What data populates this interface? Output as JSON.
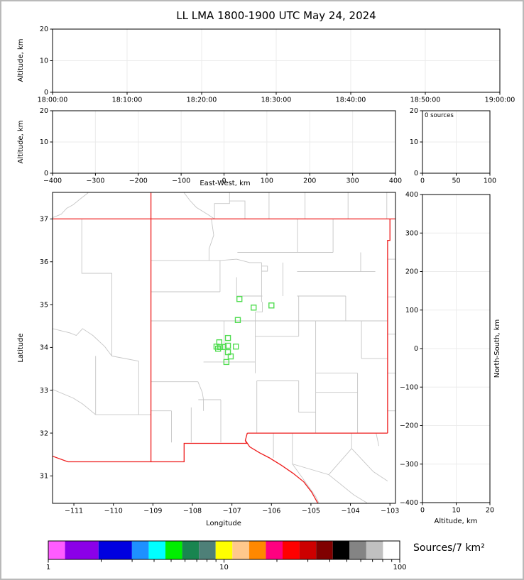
{
  "title": "LL LMA 1800-1900 UTC May 24, 2024",
  "colors": {
    "panel_border": "#000000",
    "grid": "#ebebeb",
    "tick_text": "#000000",
    "state_border": "#ee1c1c",
    "county_line": "#c6c6c6",
    "station_marker": "#52dd52"
  },
  "chart_data": [
    {
      "id": "time_height",
      "type": "scatter",
      "ylabel": "Altitude, km",
      "xlim": [
        0,
        3600
      ],
      "ylim": [
        0,
        20
      ],
      "xticks": [
        {
          "v": 0,
          "l": "18:00:00"
        },
        {
          "v": 600,
          "l": "18:10:00"
        },
        {
          "v": 1200,
          "l": "18:20:00"
        },
        {
          "v": 1800,
          "l": "18:30:00"
        },
        {
          "v": 2400,
          "l": "18:40:00"
        },
        {
          "v": 3000,
          "l": "18:50:00"
        },
        {
          "v": 3600,
          "l": "19:00:00"
        }
      ],
      "yticks": [
        {
          "v": 0,
          "l": "0"
        },
        {
          "v": 10,
          "l": "10"
        },
        {
          "v": 20,
          "l": "20"
        }
      ],
      "grid": true,
      "points": []
    },
    {
      "id": "ew_height",
      "type": "scatter",
      "xlabel": "East-West, km",
      "ylabel": "Altitude, km",
      "xlim": [
        -400,
        400
      ],
      "ylim": [
        0,
        20
      ],
      "xticks": [
        {
          "v": -400,
          "l": "−400"
        },
        {
          "v": -300,
          "l": "−300"
        },
        {
          "v": -200,
          "l": "−200"
        },
        {
          "v": -100,
          "l": "−100"
        },
        {
          "v": 0,
          "l": "0"
        },
        {
          "v": 100,
          "l": "100"
        },
        {
          "v": 200,
          "l": "200"
        },
        {
          "v": 300,
          "l": "300"
        },
        {
          "v": 400,
          "l": "400"
        }
      ],
      "yticks": [
        {
          "v": 0,
          "l": "0"
        },
        {
          "v": 10,
          "l": "10"
        },
        {
          "v": 20,
          "l": "20"
        }
      ],
      "grid": true,
      "points": []
    },
    {
      "id": "alt_hist",
      "type": "scatter",
      "annotation": "0 sources",
      "xlim": [
        0,
        100
      ],
      "ylim": [
        0,
        20
      ],
      "xticks": [
        {
          "v": 0,
          "l": "0"
        },
        {
          "v": 50,
          "l": "50"
        },
        {
          "v": 100,
          "l": "100"
        }
      ],
      "yticks": [
        {
          "v": 0,
          "l": "0"
        },
        {
          "v": 10,
          "l": "10"
        },
        {
          "v": 20,
          "l": "20"
        }
      ],
      "grid": true,
      "points": []
    },
    {
      "id": "plan_view",
      "type": "scatter",
      "xlabel": "Longitude",
      "ylabel": "Latitude",
      "xlim": [
        -111.54,
        -102.86
      ],
      "ylim": [
        30.36,
        37.62
      ],
      "xticks": [
        {
          "v": -111,
          "l": "−111"
        },
        {
          "v": -110,
          "l": "−110"
        },
        {
          "v": -109,
          "l": "−109"
        },
        {
          "v": -108,
          "l": "−108"
        },
        {
          "v": -107,
          "l": "−107"
        },
        {
          "v": -106,
          "l": "−106"
        },
        {
          "v": -105,
          "l": "−105"
        },
        {
          "v": -104,
          "l": "−104"
        },
        {
          "v": -103,
          "l": "−103"
        }
      ],
      "yticks": [
        {
          "v": 31,
          "l": "31"
        },
        {
          "v": 32,
          "l": "32"
        },
        {
          "v": 33,
          "l": "33"
        },
        {
          "v": 34,
          "l": "34"
        },
        {
          "v": 35,
          "l": "35"
        },
        {
          "v": 36,
          "l": "36"
        },
        {
          "v": 37,
          "l": "37"
        }
      ],
      "grid": false,
      "points": []
    },
    {
      "id": "ns_height",
      "type": "scatter",
      "xlabel": "Altitude, km",
      "ylabel": "North-South, km",
      "xlim": [
        0,
        20
      ],
      "ylim": [
        -400,
        400
      ],
      "xticks": [
        {
          "v": 0,
          "l": "0"
        },
        {
          "v": 10,
          "l": "10"
        },
        {
          "v": 20,
          "l": "20"
        }
      ],
      "yticks": [
        {
          "v": 400,
          "l": "400"
        },
        {
          "v": 300,
          "l": "300"
        },
        {
          "v": 200,
          "l": "200"
        },
        {
          "v": 100,
          "l": "100"
        },
        {
          "v": 0,
          "l": "0"
        },
        {
          "v": -100,
          "l": "−100"
        },
        {
          "v": -200,
          "l": "−200"
        },
        {
          "v": -300,
          "l": "−300"
        },
        {
          "v": -400,
          "l": "−400"
        }
      ],
      "grid": true,
      "points": []
    }
  ],
  "map": {
    "stations": [
      [
        -106.81,
        35.13
      ],
      [
        -106.45,
        34.93
      ],
      [
        -106.0,
        34.98
      ],
      [
        -106.85,
        34.64
      ],
      [
        -107.1,
        34.22
      ],
      [
        -107.32,
        34.12
      ],
      [
        -107.39,
        34.02
      ],
      [
        -107.3,
        34.01
      ],
      [
        -107.21,
        34.01
      ],
      [
        -107.1,
        34.04
      ],
      [
        -106.9,
        34.02
      ],
      [
        -107.35,
        33.97
      ],
      [
        -107.1,
        33.89
      ],
      [
        -107.03,
        33.79
      ],
      [
        -107.14,
        33.66
      ]
    ],
    "state_border": [
      [
        [
          -111.54,
          37.0
        ],
        [
          -102.86,
          37.0
        ]
      ],
      [
        [
          -109.05,
          37.61
        ],
        [
          -109.05,
          31.33
        ]
      ],
      [
        [
          -103.0,
          37.0
        ],
        [
          -103.0,
          36.5
        ],
        [
          -103.06,
          36.5
        ],
        [
          -103.06,
          32.0
        ]
      ],
      [
        [
          -103.06,
          32.0
        ],
        [
          -106.61,
          32.0
        ]
      ],
      [
        [
          -106.61,
          32.0
        ],
        [
          -106.66,
          31.83
        ],
        [
          -106.63,
          31.76
        ],
        [
          -108.21,
          31.76
        ],
        [
          -108.21,
          31.33
        ],
        [
          -111.15,
          31.33
        ],
        [
          -111.54,
          31.46
        ]
      ],
      [
        [
          -106.66,
          31.83
        ],
        [
          -106.55,
          31.68
        ],
        [
          -106.3,
          31.54
        ],
        [
          -106.05,
          31.42
        ],
        [
          -105.75,
          31.25
        ],
        [
          -105.45,
          31.06
        ],
        [
          -105.18,
          30.86
        ],
        [
          -104.98,
          30.62
        ],
        [
          -104.83,
          30.37
        ]
      ]
    ],
    "county_lines": [
      [
        [
          -110.64,
          37.61
        ],
        [
          -110.82,
          37.48
        ],
        [
          -111.02,
          37.33
        ],
        [
          -111.18,
          37.25
        ],
        [
          -111.32,
          37.11
        ],
        [
          -111.46,
          37.06
        ],
        [
          -111.54,
          37.03
        ]
      ],
      [
        [
          -108.21,
          37.61
        ],
        [
          -108.06,
          37.43
        ],
        [
          -107.9,
          37.27
        ],
        [
          -107.62,
          37.11
        ],
        [
          -107.44,
          37.0
        ]
      ],
      [
        [
          -107.44,
          37.0
        ],
        [
          -107.44,
          37.36
        ],
        [
          -107.06,
          37.36
        ],
        [
          -107.06,
          37.61
        ]
      ],
      [
        [
          -107.06,
          37.42
        ],
        [
          -106.67,
          37.42
        ],
        [
          -106.67,
          37.0
        ]
      ],
      [
        [
          -106.06,
          37.61
        ],
        [
          -106.06,
          37.0
        ]
      ],
      [
        [
          -105.15,
          37.61
        ],
        [
          -105.15,
          37.0
        ]
      ],
      [
        [
          -104.06,
          37.61
        ],
        [
          -104.06,
          37.0
        ]
      ],
      [
        [
          -103.08,
          37.61
        ],
        [
          -103.08,
          37.0
        ]
      ],
      [
        [
          -110.8,
          37.0
        ],
        [
          -110.8,
          35.73
        ],
        [
          -110.04,
          35.73
        ],
        [
          -110.04,
          33.8
        ]
      ],
      [
        [
          -111.54,
          34.44
        ],
        [
          -111.1,
          34.34
        ],
        [
          -110.94,
          34.28
        ],
        [
          -110.78,
          34.44
        ],
        [
          -110.52,
          34.28
        ],
        [
          -110.22,
          34.02
        ],
        [
          -110.04,
          33.8
        ]
      ],
      [
        [
          -110.45,
          33.8
        ],
        [
          -110.45,
          32.43
        ]
      ],
      [
        [
          -110.04,
          33.8
        ],
        [
          -109.36,
          33.68
        ]
      ],
      [
        [
          -109.36,
          33.68
        ],
        [
          -109.36,
          32.43
        ]
      ],
      [
        [
          -110.45,
          32.43
        ],
        [
          -109.05,
          32.43
        ]
      ],
      [
        [
          -111.54,
          33.02
        ],
        [
          -111.02,
          32.82
        ],
        [
          -110.78,
          32.68
        ],
        [
          -110.45,
          32.43
        ]
      ],
      [
        [
          -109.05,
          36.03
        ],
        [
          -107.58,
          36.03
        ]
      ],
      [
        [
          -107.52,
          37.0
        ],
        [
          -107.46,
          36.62
        ],
        [
          -107.58,
          36.3
        ],
        [
          -107.58,
          36.03
        ]
      ],
      [
        [
          -107.58,
          36.03
        ],
        [
          -107.3,
          36.03
        ],
        [
          -107.3,
          35.3
        ]
      ],
      [
        [
          -109.05,
          35.3
        ],
        [
          -107.3,
          35.3
        ]
      ],
      [
        [
          -107.3,
          36.03
        ],
        [
          -106.88,
          36.06
        ],
        [
          -106.55,
          35.98
        ],
        [
          -106.25,
          35.98
        ]
      ],
      [
        [
          -106.25,
          35.98
        ],
        [
          -106.25,
          35.06
        ]
      ],
      [
        [
          -105.71,
          35.98
        ],
        [
          -105.71,
          35.2
        ]
      ],
      [
        [
          -106.86,
          36.22
        ],
        [
          -104.44,
          36.22
        ]
      ],
      [
        [
          -105.34,
          37.0
        ],
        [
          -105.34,
          36.22
        ]
      ],
      [
        [
          -104.44,
          37.0
        ],
        [
          -104.44,
          36.22
        ]
      ],
      [
        [
          -103.74,
          36.22
        ],
        [
          -103.74,
          35.77
        ]
      ],
      [
        [
          -105.35,
          35.77
        ],
        [
          -103.37,
          35.77
        ]
      ],
      [
        [
          -105.35,
          35.2
        ],
        [
          -104.12,
          35.2
        ]
      ],
      [
        [
          -104.12,
          35.2
        ],
        [
          -104.12,
          34.62
        ]
      ],
      [
        [
          -106.88,
          35.64
        ],
        [
          -106.88,
          35.2
        ]
      ],
      [
        [
          -106.88,
          35.2
        ],
        [
          -106.23,
          35.2
        ]
      ],
      [
        [
          -106.25,
          35.9
        ],
        [
          -106.1,
          35.9
        ],
        [
          -106.1,
          35.78
        ],
        [
          -106.25,
          35.78
        ]
      ],
      [
        [
          -109.05,
          34.62
        ],
        [
          -103.06,
          34.62
        ]
      ],
      [
        [
          -106.41,
          34.83
        ],
        [
          -106.41,
          33.4
        ]
      ],
      [
        [
          -106.23,
          35.06
        ],
        [
          -106.23,
          34.83
        ],
        [
          -106.41,
          34.83
        ]
      ],
      [
        [
          -106.41,
          34.26
        ],
        [
          -105.31,
          34.26
        ]
      ],
      [
        [
          -105.31,
          35.2
        ],
        [
          -105.31,
          34.26
        ]
      ],
      [
        [
          -103.72,
          34.62
        ],
        [
          -103.72,
          33.74
        ]
      ],
      [
        [
          -103.72,
          33.74
        ],
        [
          -103.06,
          33.74
        ]
      ],
      [
        [
          -104.88,
          34.62
        ],
        [
          -104.88,
          32.0
        ]
      ],
      [
        [
          -104.88,
          33.4
        ],
        [
          -103.82,
          33.4
        ]
      ],
      [
        [
          -103.82,
          33.4
        ],
        [
          -103.82,
          32.0
        ]
      ],
      [
        [
          -104.88,
          32.95
        ],
        [
          -103.82,
          32.95
        ]
      ],
      [
        [
          -107.2,
          34.62
        ],
        [
          -107.2,
          33.66
        ]
      ],
      [
        [
          -107.72,
          33.66
        ],
        [
          -106.41,
          33.66
        ]
      ],
      [
        [
          -109.05,
          33.2
        ],
        [
          -107.86,
          33.2
        ]
      ],
      [
        [
          -107.86,
          33.2
        ],
        [
          -107.75,
          32.95
        ],
        [
          -107.72,
          32.78
        ],
        [
          -107.72,
          32.52
        ]
      ],
      [
        [
          -107.85,
          32.78
        ],
        [
          -107.28,
          32.78
        ]
      ],
      [
        [
          -107.28,
          32.78
        ],
        [
          -107.28,
          31.78
        ]
      ],
      [
        [
          -108.03,
          32.6
        ],
        [
          -108.03,
          31.78
        ]
      ],
      [
        [
          -108.53,
          32.52
        ],
        [
          -108.53,
          31.78
        ]
      ],
      [
        [
          -109.05,
          32.52
        ],
        [
          -108.53,
          32.52
        ]
      ],
      [
        [
          -106.37,
          33.22
        ],
        [
          -105.31,
          33.22
        ],
        [
          -105.31,
          32.49
        ],
        [
          -104.88,
          32.49
        ]
      ],
      [
        [
          -106.37,
          33.22
        ],
        [
          -106.37,
          32.0
        ]
      ],
      [
        [
          -105.95,
          32.0
        ],
        [
          -105.95,
          31.42
        ]
      ],
      [
        [
          -105.47,
          32.0
        ],
        [
          -105.47,
          31.28
        ],
        [
          -104.88,
          30.52
        ],
        [
          -104.8,
          30.37
        ]
      ],
      [
        [
          -105.47,
          31.28
        ],
        [
          -104.55,
          31.03
        ],
        [
          -103.92,
          30.56
        ],
        [
          -103.58,
          30.37
        ]
      ],
      [
        [
          -103.97,
          32.0
        ],
        [
          -103.97,
          31.64
        ],
        [
          -104.55,
          31.03
        ]
      ],
      [
        [
          -103.97,
          31.64
        ],
        [
          -103.42,
          31.1
        ],
        [
          -103.06,
          30.88
        ]
      ],
      [
        [
          -103.35,
          32.0
        ],
        [
          -103.28,
          31.7
        ]
      ],
      [
        [
          -103.06,
          36.06
        ],
        [
          -102.86,
          36.06
        ]
      ],
      [
        [
          -103.06,
          35.18
        ],
        [
          -102.86,
          35.18
        ]
      ],
      [
        [
          -103.06,
          34.31
        ],
        [
          -102.86,
          34.31
        ]
      ],
      [
        [
          -103.06,
          33.4
        ],
        [
          -102.86,
          33.4
        ]
      ],
      [
        [
          -103.06,
          32.52
        ],
        [
          -102.86,
          32.52
        ]
      ]
    ]
  },
  "colorbar": {
    "label": "Sources/7 km²",
    "scale": "log",
    "range": [
      1,
      100
    ],
    "colors": [
      "#ff5cff",
      "#8b00e8",
      "#0000e0",
      "#1e90ff",
      "#00ffff",
      "#00ee00",
      "#198550",
      "#4e8078",
      "#ffff00",
      "#ffc88c",
      "#ff8800",
      "#ff0080",
      "#ff0000",
      "#cd0000",
      "#800000",
      "#000000",
      "#848484",
      "#c0c0c0",
      "#ffffff"
    ],
    "spans": [
      1,
      2,
      2,
      1,
      1,
      1,
      1,
      1,
      1,
      1,
      1,
      1,
      1,
      1,
      1,
      1,
      1,
      1,
      1
    ],
    "major_ticks": [
      {
        "v": 1,
        "l": "1"
      },
      {
        "v": 10,
        "l": "10"
      },
      {
        "v": 100,
        "l": "100"
      }
    ],
    "minor_ticks": [
      2,
      3,
      4,
      5,
      6,
      7,
      8,
      9,
      20,
      30,
      40,
      50,
      60,
      70,
      80,
      90
    ]
  }
}
